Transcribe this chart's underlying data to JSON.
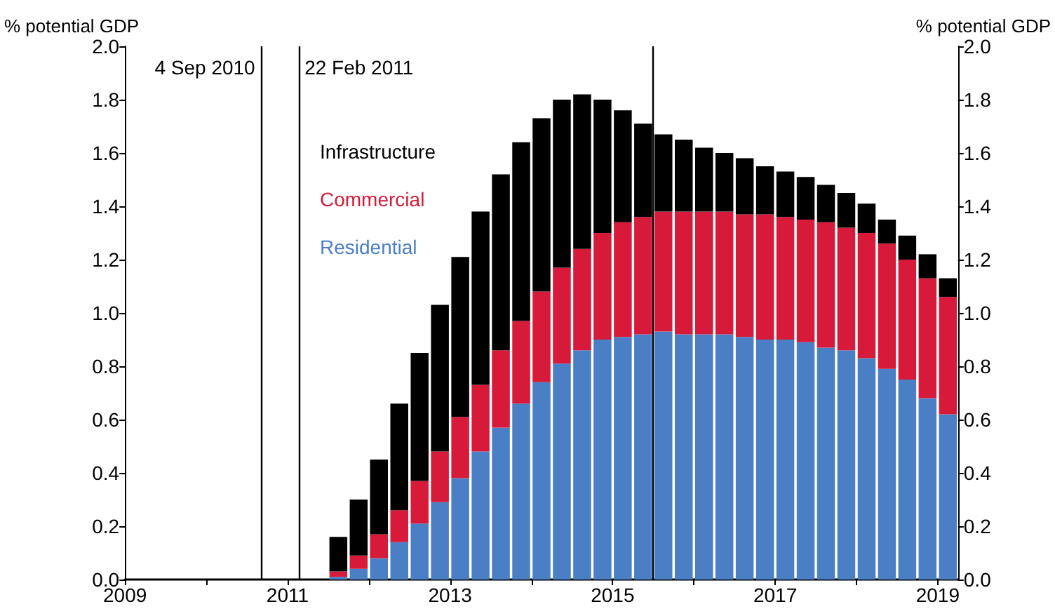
{
  "chart_data": {
    "type": "bar",
    "stacked": true,
    "ylabel": "% potential GDP",
    "y2label": "% potential GDP",
    "x": [
      2011.625,
      2011.875,
      2012.125,
      2012.375,
      2012.625,
      2012.875,
      2013.125,
      2013.375,
      2013.625,
      2013.875,
      2014.125,
      2014.375,
      2014.625,
      2014.875,
      2015.125,
      2015.375,
      2015.625,
      2015.875,
      2016.125,
      2016.375,
      2016.625,
      2016.875,
      2017.125,
      2017.375,
      2017.625,
      2017.875,
      2018.125,
      2018.375,
      2018.625,
      2018.875,
      2019.125
    ],
    "series": [
      {
        "name": "Residential",
        "color": "#4a7fc5",
        "values": [
          0.01,
          0.04,
          0.08,
          0.14,
          0.21,
          0.29,
          0.38,
          0.48,
          0.57,
          0.66,
          0.74,
          0.81,
          0.86,
          0.9,
          0.91,
          0.92,
          0.93,
          0.92,
          0.92,
          0.92,
          0.91,
          0.9,
          0.9,
          0.89,
          0.87,
          0.86,
          0.83,
          0.79,
          0.75,
          0.68,
          0.62
        ]
      },
      {
        "name": "Commercial",
        "color": "#d7193a",
        "values": [
          0.02,
          0.05,
          0.09,
          0.12,
          0.16,
          0.19,
          0.23,
          0.25,
          0.29,
          0.31,
          0.34,
          0.36,
          0.38,
          0.4,
          0.43,
          0.44,
          0.45,
          0.46,
          0.46,
          0.46,
          0.46,
          0.47,
          0.46,
          0.46,
          0.47,
          0.46,
          0.47,
          0.47,
          0.45,
          0.45,
          0.44
        ]
      },
      {
        "name": "Infrastructure",
        "color": "#000000",
        "values": [
          0.13,
          0.21,
          0.28,
          0.4,
          0.48,
          0.55,
          0.6,
          0.65,
          0.66,
          0.67,
          0.65,
          0.63,
          0.58,
          0.5,
          0.42,
          0.35,
          0.29,
          0.27,
          0.24,
          0.22,
          0.21,
          0.18,
          0.17,
          0.16,
          0.14,
          0.13,
          0.11,
          0.09,
          0.09,
          0.09,
          0.07
        ]
      }
    ],
    "xlim": [
      2009,
      2019.25
    ],
    "xticks": [
      2009,
      {
        "value": 2010,
        "label": null
      },
      2011,
      {
        "value": 2012,
        "label": null
      },
      2013,
      {
        "value": 2014,
        "label": null
      },
      2015,
      {
        "value": 2016,
        "label": null
      },
      2017,
      {
        "value": 2018,
        "label": null
      },
      2019
    ],
    "ylim": [
      0,
      2
    ],
    "yticks": [
      {
        "value": 0,
        "label": "0.0"
      },
      0.2,
      0.4,
      0.6,
      0.8,
      {
        "value": 1,
        "label": "1.0"
      },
      1.2,
      1.4,
      1.6,
      1.8,
      {
        "value": 2,
        "label": "2.0"
      }
    ],
    "y2lim": [
      0,
      2
    ],
    "y2ticks": [
      {
        "value": 0,
        "label": "0.0"
      },
      0.2,
      0.4,
      0.6,
      0.8,
      {
        "value": 1,
        "label": "1.0"
      },
      1.2,
      1.4,
      1.6,
      1.8,
      {
        "value": 2,
        "label": "2.0"
      }
    ],
    "ref_lines": [
      {
        "axis": "x",
        "value": 2010.67,
        "label": "4 Sep 2010",
        "color": "#000000"
      },
      {
        "axis": "x",
        "value": 2011.14,
        "label": "22 Feb 2011",
        "color": "#000000"
      },
      {
        "axis": "x",
        "value": 2015.5,
        "label": null,
        "color": "#000000"
      }
    ],
    "legend": "top left",
    "grid": false
  }
}
